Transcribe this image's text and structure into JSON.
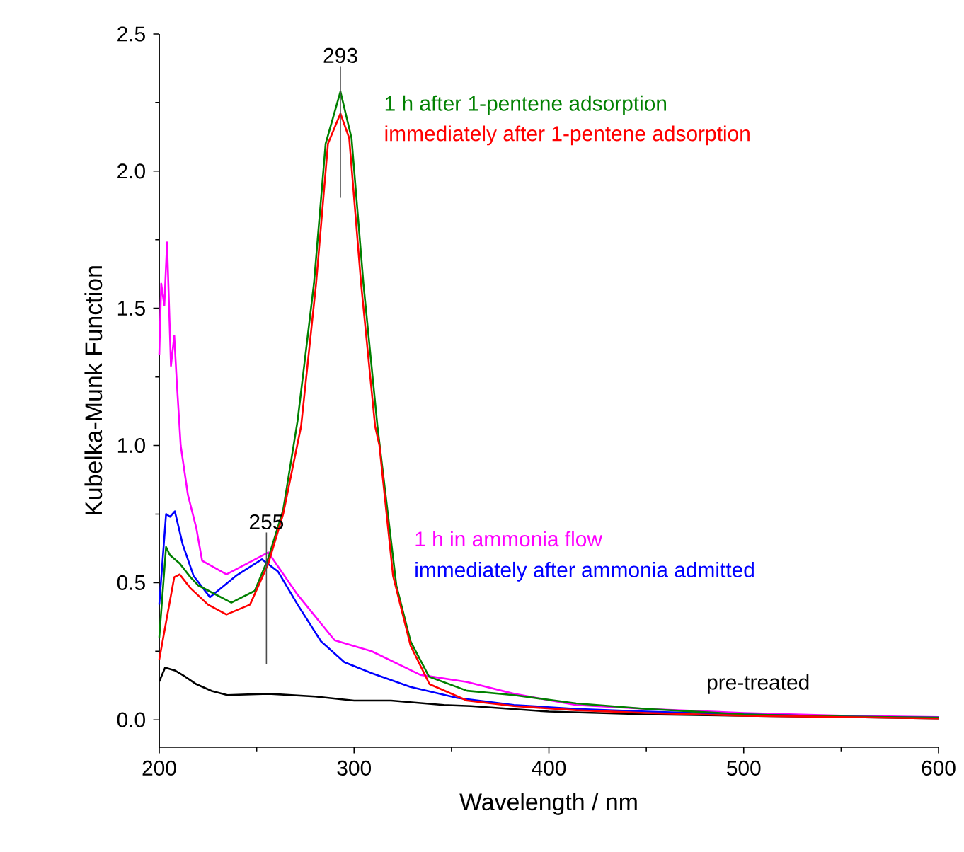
{
  "chart_data": {
    "type": "line",
    "xlabel": "Wavelength / nm",
    "ylabel": "Kubelka-Munk Function",
    "xlim": [
      200,
      600
    ],
    "ylim": [
      -0.1,
      2.5
    ],
    "xticks": [
      200,
      300,
      400,
      500,
      600
    ],
    "yticks": [
      {
        "value": 0,
        "label": "0.0"
      },
      {
        "value": 0.5,
        "label": "0.5"
      },
      {
        "value": 1,
        "label": "1.0"
      },
      {
        "value": 1.5,
        "label": "1.5"
      },
      {
        "value": 2,
        "label": "2.0"
      },
      {
        "value": 2.5,
        "label": "2.5"
      }
    ],
    "grid": false,
    "legend": false,
    "marker": "none",
    "line_style": "solid",
    "annotations": [
      {
        "text": "293",
        "x": 293,
        "y": 2.29
      },
      {
        "text": "255",
        "x": 255,
        "y": 0.59
      }
    ],
    "series": [
      {
        "name": "pre-treated",
        "color": "#000000",
        "x": [
          200,
          203,
          208,
          212.7,
          219,
          227,
          235,
          256,
          280,
          300,
          319,
          346,
          360,
          400,
          450,
          500,
          550,
          600
        ],
        "values": [
          0.14,
          0.19,
          0.18,
          0.16,
          0.13,
          0.105,
          0.09,
          0.095,
          0.085,
          0.07,
          0.07,
          0.054,
          0.05,
          0.03,
          0.02,
          0.015,
          0.01,
          0.005
        ]
      },
      {
        "name": "1 h in ammonia flow",
        "color": "#ff00ff",
        "x": [
          200,
          201,
          202.6,
          204,
          206,
          207.7,
          209,
          211,
          214.7,
          219,
          222,
          234.5,
          256,
          271,
          290,
          309,
          334,
          358,
          382,
          414,
          450,
          500,
          550,
          600
        ],
        "values": [
          1.33,
          1.59,
          1.51,
          1.74,
          1.29,
          1.4,
          1.23,
          1.0,
          0.82,
          0.7,
          0.58,
          0.53,
          0.61,
          0.456,
          0.29,
          0.25,
          0.164,
          0.138,
          0.095,
          0.054,
          0.04,
          0.025,
          0.015,
          0.01
        ]
      },
      {
        "name": "immediately after ammonia admitted",
        "color": "#0000ff",
        "x": [
          200,
          203.5,
          205.5,
          208,
          212,
          217.6,
          226,
          239.4,
          252.7,
          261,
          271,
          283,
          295,
          309,
          329,
          353,
          382,
          414,
          450,
          500,
          550,
          600
        ],
        "values": [
          0.42,
          0.75,
          0.74,
          0.76,
          0.64,
          0.525,
          0.447,
          0.525,
          0.585,
          0.54,
          0.42,
          0.286,
          0.21,
          0.17,
          0.12,
          0.08,
          0.054,
          0.04,
          0.03,
          0.02,
          0.012,
          0.008
        ]
      },
      {
        "name": "1 h after 1-pentene adsorption",
        "color": "#008000",
        "x": [
          200,
          203.5,
          205.5,
          210.5,
          216,
          220,
          237,
          249,
          256,
          263.6,
          271,
          279.4,
          285.4,
          293,
          298.7,
          304.8,
          312,
          314.5,
          321.7,
          329,
          338.5,
          358,
          382,
          414,
          450,
          500,
          550,
          600
        ],
        "values": [
          0.3,
          0.63,
          0.6,
          0.57,
          0.52,
          0.49,
          0.427,
          0.47,
          0.59,
          0.765,
          1.09,
          1.59,
          2.1,
          2.29,
          2.12,
          1.59,
          1.07,
          0.92,
          0.49,
          0.286,
          0.157,
          0.106,
          0.09,
          0.06,
          0.04,
          0.02,
          0.012,
          0.008
        ]
      },
      {
        "name": "immediately after 1-pentene adsorption",
        "color": "#ff0000",
        "x": [
          200,
          207.7,
          210.5,
          216,
          225,
          234.5,
          246.6,
          256,
          263.6,
          272.8,
          280.5,
          286.6,
          293,
          297.5,
          303.6,
          310.8,
          313,
          320,
          329,
          338.7,
          358,
          382,
          414,
          450,
          500,
          550,
          600
        ],
        "values": [
          0.22,
          0.52,
          0.53,
          0.48,
          0.42,
          0.384,
          0.42,
          0.57,
          0.75,
          1.07,
          1.59,
          2.1,
          2.21,
          2.12,
          1.59,
          1.07,
          1.0,
          0.525,
          0.27,
          0.13,
          0.07,
          0.05,
          0.035,
          0.025,
          0.015,
          0.01,
          0.005
        ]
      }
    ]
  }
}
